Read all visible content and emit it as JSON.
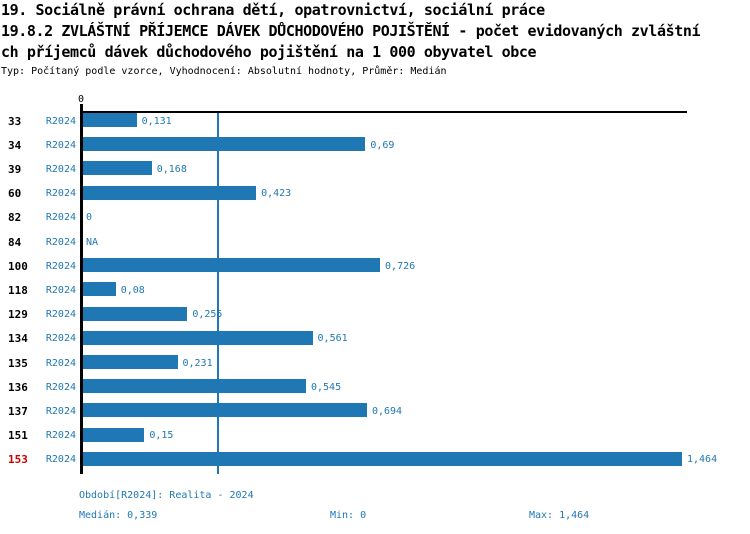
{
  "title": {
    "line1": "19. Sociálně právní ochrana dětí, opatrovnictví, sociální práce",
    "line2": "19.8.2 ZVLÁŠTNÍ PŘÍJEMCE DÁVEK DŮCHODOVÉHO POJIŠTĚNÍ - počet evidovaných zvláštní",
    "line3": "ch příjemců dávek důchodového pojištění na 1 000 obyvatel obce",
    "meta": "Typ: Počítaný podle vzorce, Vyhodnocení: Absolutní hodnoty, Průměr: Medián"
  },
  "chart_data": {
    "type": "bar",
    "orientation": "horizontal",
    "title": "19.8.2 ZVLÁŠTNÍ PŘÍJEMCE DÁVEK DŮCHODOVÉHO POJIŠTĚNÍ - počet evidovaných zvláštních příjemců dávek důchodového pojištění na 1 000 obyvatel obce",
    "xlabel": "",
    "ylabel": "",
    "xlim": [
      0,
      1.464
    ],
    "axis_zero_label": "0",
    "median_value": 0.339,
    "grid": false,
    "legend_position": "none",
    "categories": [
      "33",
      "34",
      "39",
      "60",
      "82",
      "84",
      "100",
      "118",
      "129",
      "134",
      "135",
      "136",
      "137",
      "151",
      "153"
    ],
    "series": [
      {
        "name": "R2024",
        "values": [
          0.131,
          0.69,
          0.168,
          0.423,
          0,
          null,
          0.726,
          0.08,
          0.255,
          0.561,
          0.231,
          0.545,
          0.694,
          0.15,
          1.464
        ]
      }
    ],
    "rows": [
      {
        "id": "33",
        "period": "R2024",
        "value": 0.131,
        "label": "0,131",
        "highlight": false
      },
      {
        "id": "34",
        "period": "R2024",
        "value": 0.69,
        "label": "0,69",
        "highlight": false
      },
      {
        "id": "39",
        "period": "R2024",
        "value": 0.168,
        "label": "0,168",
        "highlight": false
      },
      {
        "id": "60",
        "period": "R2024",
        "value": 0.423,
        "label": "0,423",
        "highlight": false
      },
      {
        "id": "82",
        "period": "R2024",
        "value": 0,
        "label": "0",
        "highlight": false
      },
      {
        "id": "84",
        "period": "R2024",
        "value": null,
        "label": "NA",
        "highlight": false
      },
      {
        "id": "100",
        "period": "R2024",
        "value": 0.726,
        "label": "0,726",
        "highlight": false
      },
      {
        "id": "118",
        "period": "R2024",
        "value": 0.08,
        "label": "0,08",
        "highlight": false
      },
      {
        "id": "129",
        "period": "R2024",
        "value": 0.255,
        "label": "0,255",
        "highlight": false
      },
      {
        "id": "134",
        "period": "R2024",
        "value": 0.561,
        "label": "0,561",
        "highlight": false
      },
      {
        "id": "135",
        "period": "R2024",
        "value": 0.231,
        "label": "0,231",
        "highlight": false
      },
      {
        "id": "136",
        "period": "R2024",
        "value": 0.545,
        "label": "0,545",
        "highlight": false
      },
      {
        "id": "137",
        "period": "R2024",
        "value": 0.694,
        "label": "0,694",
        "highlight": false
      },
      {
        "id": "151",
        "period": "R2024",
        "value": 0.15,
        "label": "0,15",
        "highlight": false
      },
      {
        "id": "153",
        "period": "R2024",
        "value": 1.464,
        "label": "1,464",
        "highlight": true
      }
    ],
    "colors": {
      "bar": "#1f77b4",
      "text_blue": "#1f77b4",
      "median_line": "#1f77b4",
      "highlight_row": "#cc0000",
      "axis": "#000000"
    }
  },
  "footer": {
    "period_info": "Období[R2024]: Realita - 2024",
    "median_label": "Medián: 0,339",
    "min_label": "Min: 0",
    "max_label": "Max: 1,464"
  }
}
